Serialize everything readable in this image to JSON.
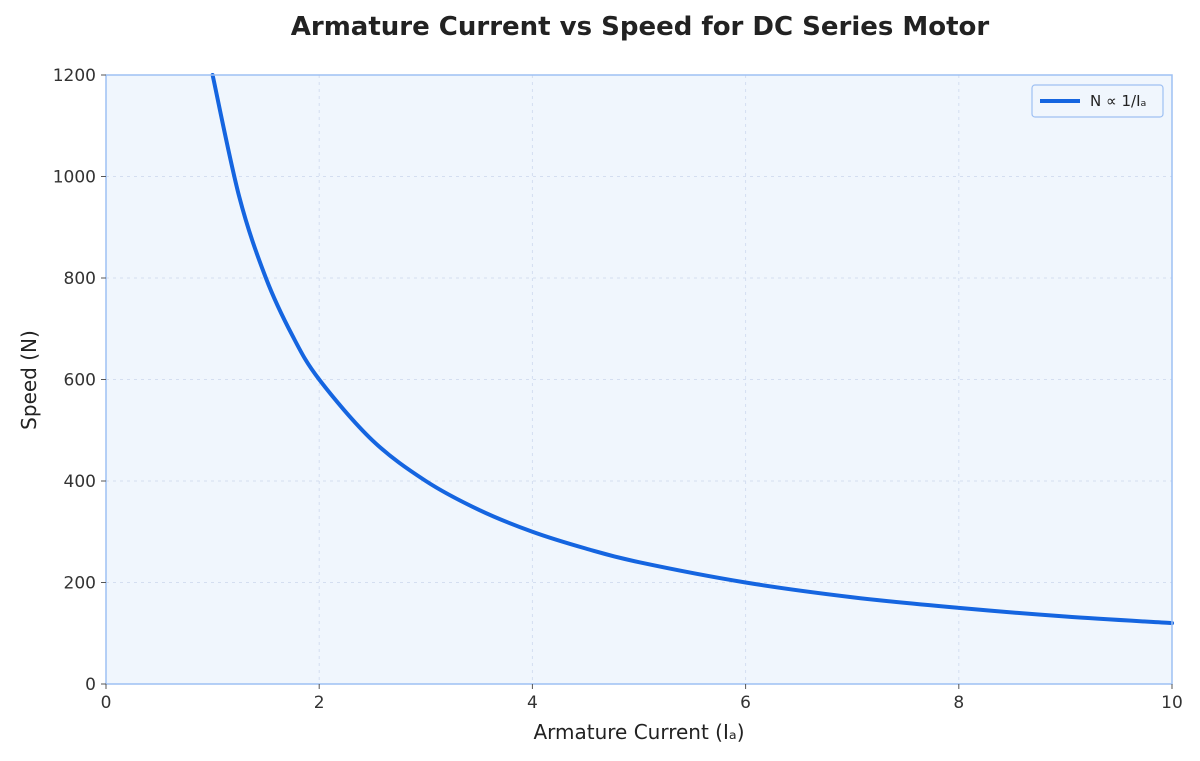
{
  "chart_data": {
    "type": "line",
    "title": "Armature Current vs Speed for DC Series Motor",
    "xlabel": "Armature Current (Iₐ)",
    "ylabel": "Speed (N)",
    "xlim": [
      0,
      10
    ],
    "ylim": [
      0,
      1200
    ],
    "x_ticks": [
      0,
      2,
      4,
      6,
      8,
      10
    ],
    "y_ticks": [
      0,
      200,
      400,
      600,
      800,
      1000,
      1200
    ],
    "grid": true,
    "legend_position": "top-right",
    "background_color": "#f0f6fd",
    "frame_color": "#9ec0f3",
    "series": [
      {
        "name": "N ∝ 1/Iₐ",
        "color": "#1565e0",
        "x": [
          1.0,
          1.25,
          1.5,
          1.75,
          2.0,
          2.5,
          3.0,
          3.5,
          4.0,
          4.5,
          5.0,
          6.0,
          7.0,
          8.0,
          9.0,
          10.0
        ],
        "y": [
          1200,
          960,
          800,
          686,
          600,
          480,
          400,
          343,
          300,
          267,
          240,
          200,
          171,
          150,
          133,
          120
        ]
      }
    ]
  }
}
